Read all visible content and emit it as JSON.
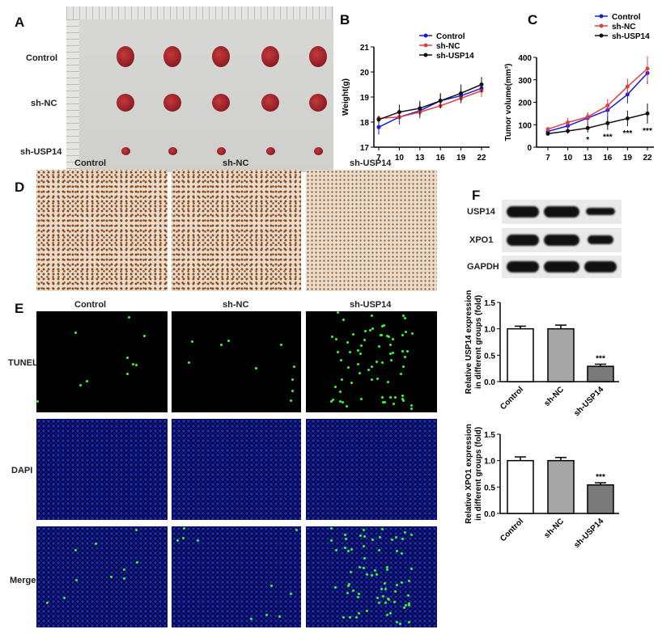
{
  "panels": {
    "a": "A",
    "b": "B",
    "c": "C",
    "d": "D",
    "e": "E",
    "f": "F"
  },
  "groups": [
    "Control",
    "sh-NC",
    "sh-USP14"
  ],
  "tunel_rows": [
    "TUNEL",
    "DAPI",
    "Merge"
  ],
  "blot_rows": [
    "USP14",
    "XPO1",
    "GAPDH"
  ],
  "colors": {
    "control": "#1a1adf",
    "sh_nc": "#e04040",
    "sh_usp14": "#111111"
  },
  "chart_data": [
    {
      "id": "B",
      "type": "line",
      "xlabel": "",
      "ylabel": "Weight(g)",
      "x": [
        7,
        10,
        13,
        16,
        19,
        22
      ],
      "ylim": [
        17,
        21
      ],
      "yticks": [
        17,
        18,
        19,
        20,
        21
      ],
      "legend": "top",
      "series": [
        {
          "name": "Control",
          "values": [
            17.8,
            18.2,
            18.45,
            18.85,
            19.05,
            19.35
          ],
          "err": [
            0.3,
            0.3,
            0.3,
            0.3,
            0.3,
            0.3
          ]
        },
        {
          "name": "sh-NC",
          "values": [
            18.15,
            18.2,
            18.4,
            18.65,
            18.95,
            19.25
          ],
          "err": [
            0.1,
            0.15,
            0.15,
            0.1,
            0.2,
            0.25
          ]
        },
        {
          "name": "sh-USP14",
          "values": [
            18.1,
            18.4,
            18.55,
            18.85,
            19.15,
            19.5
          ],
          "err": [
            0.15,
            0.3,
            0.3,
            0.3,
            0.35,
            0.3
          ]
        }
      ]
    },
    {
      "id": "C",
      "type": "line",
      "xlabel": "",
      "ylabel": "Tumor volume(mm³)",
      "x": [
        7,
        10,
        13,
        16,
        19,
        22
      ],
      "ylim": [
        0,
        400
      ],
      "yticks": [
        0,
        100,
        200,
        300,
        400
      ],
      "legend": "top",
      "series": [
        {
          "name": "Control",
          "values": [
            70,
            95,
            130,
            165,
            235,
            330
          ],
          "err": [
            10,
            20,
            25,
            30,
            40,
            50
          ]
        },
        {
          "name": "sh-NC",
          "values": [
            80,
            110,
            135,
            185,
            270,
            350
          ],
          "err": [
            10,
            20,
            20,
            30,
            35,
            55
          ]
        },
        {
          "name": "sh-USP14",
          "values": [
            60,
            72,
            85,
            107,
            128,
            150
          ],
          "err": [
            8,
            12,
            20,
            30,
            35,
            45
          ]
        }
      ],
      "annotations": [
        "",
        "",
        "*",
        "***",
        "***",
        "***"
      ]
    },
    {
      "id": "F1",
      "type": "bar",
      "ylabel": "Relative USP14 expression in different groups (fold)",
      "categories": [
        "Control",
        "sh-NC",
        "sh-USP14"
      ],
      "values": [
        1.0,
        1.0,
        0.29
      ],
      "err": [
        0.05,
        0.07,
        0.04
      ],
      "ylim": [
        0,
        1.5
      ],
      "yticks": [
        "0.0",
        "0.5",
        "1.0",
        "1.5"
      ],
      "annotations": [
        "",
        "",
        "***"
      ]
    },
    {
      "id": "F2",
      "type": "bar",
      "ylabel": "Relative XPO1 expression in different groups (fold)",
      "categories": [
        "Control",
        "sh-NC",
        "sh-USP14"
      ],
      "values": [
        1.0,
        1.0,
        0.54
      ],
      "err": [
        0.07,
        0.06,
        0.04
      ],
      "ylim": [
        0,
        1.5
      ],
      "yticks": [
        "0.0",
        "0.5",
        "1.0",
        "1.5"
      ],
      "annotations": [
        "",
        "",
        "***"
      ]
    }
  ]
}
